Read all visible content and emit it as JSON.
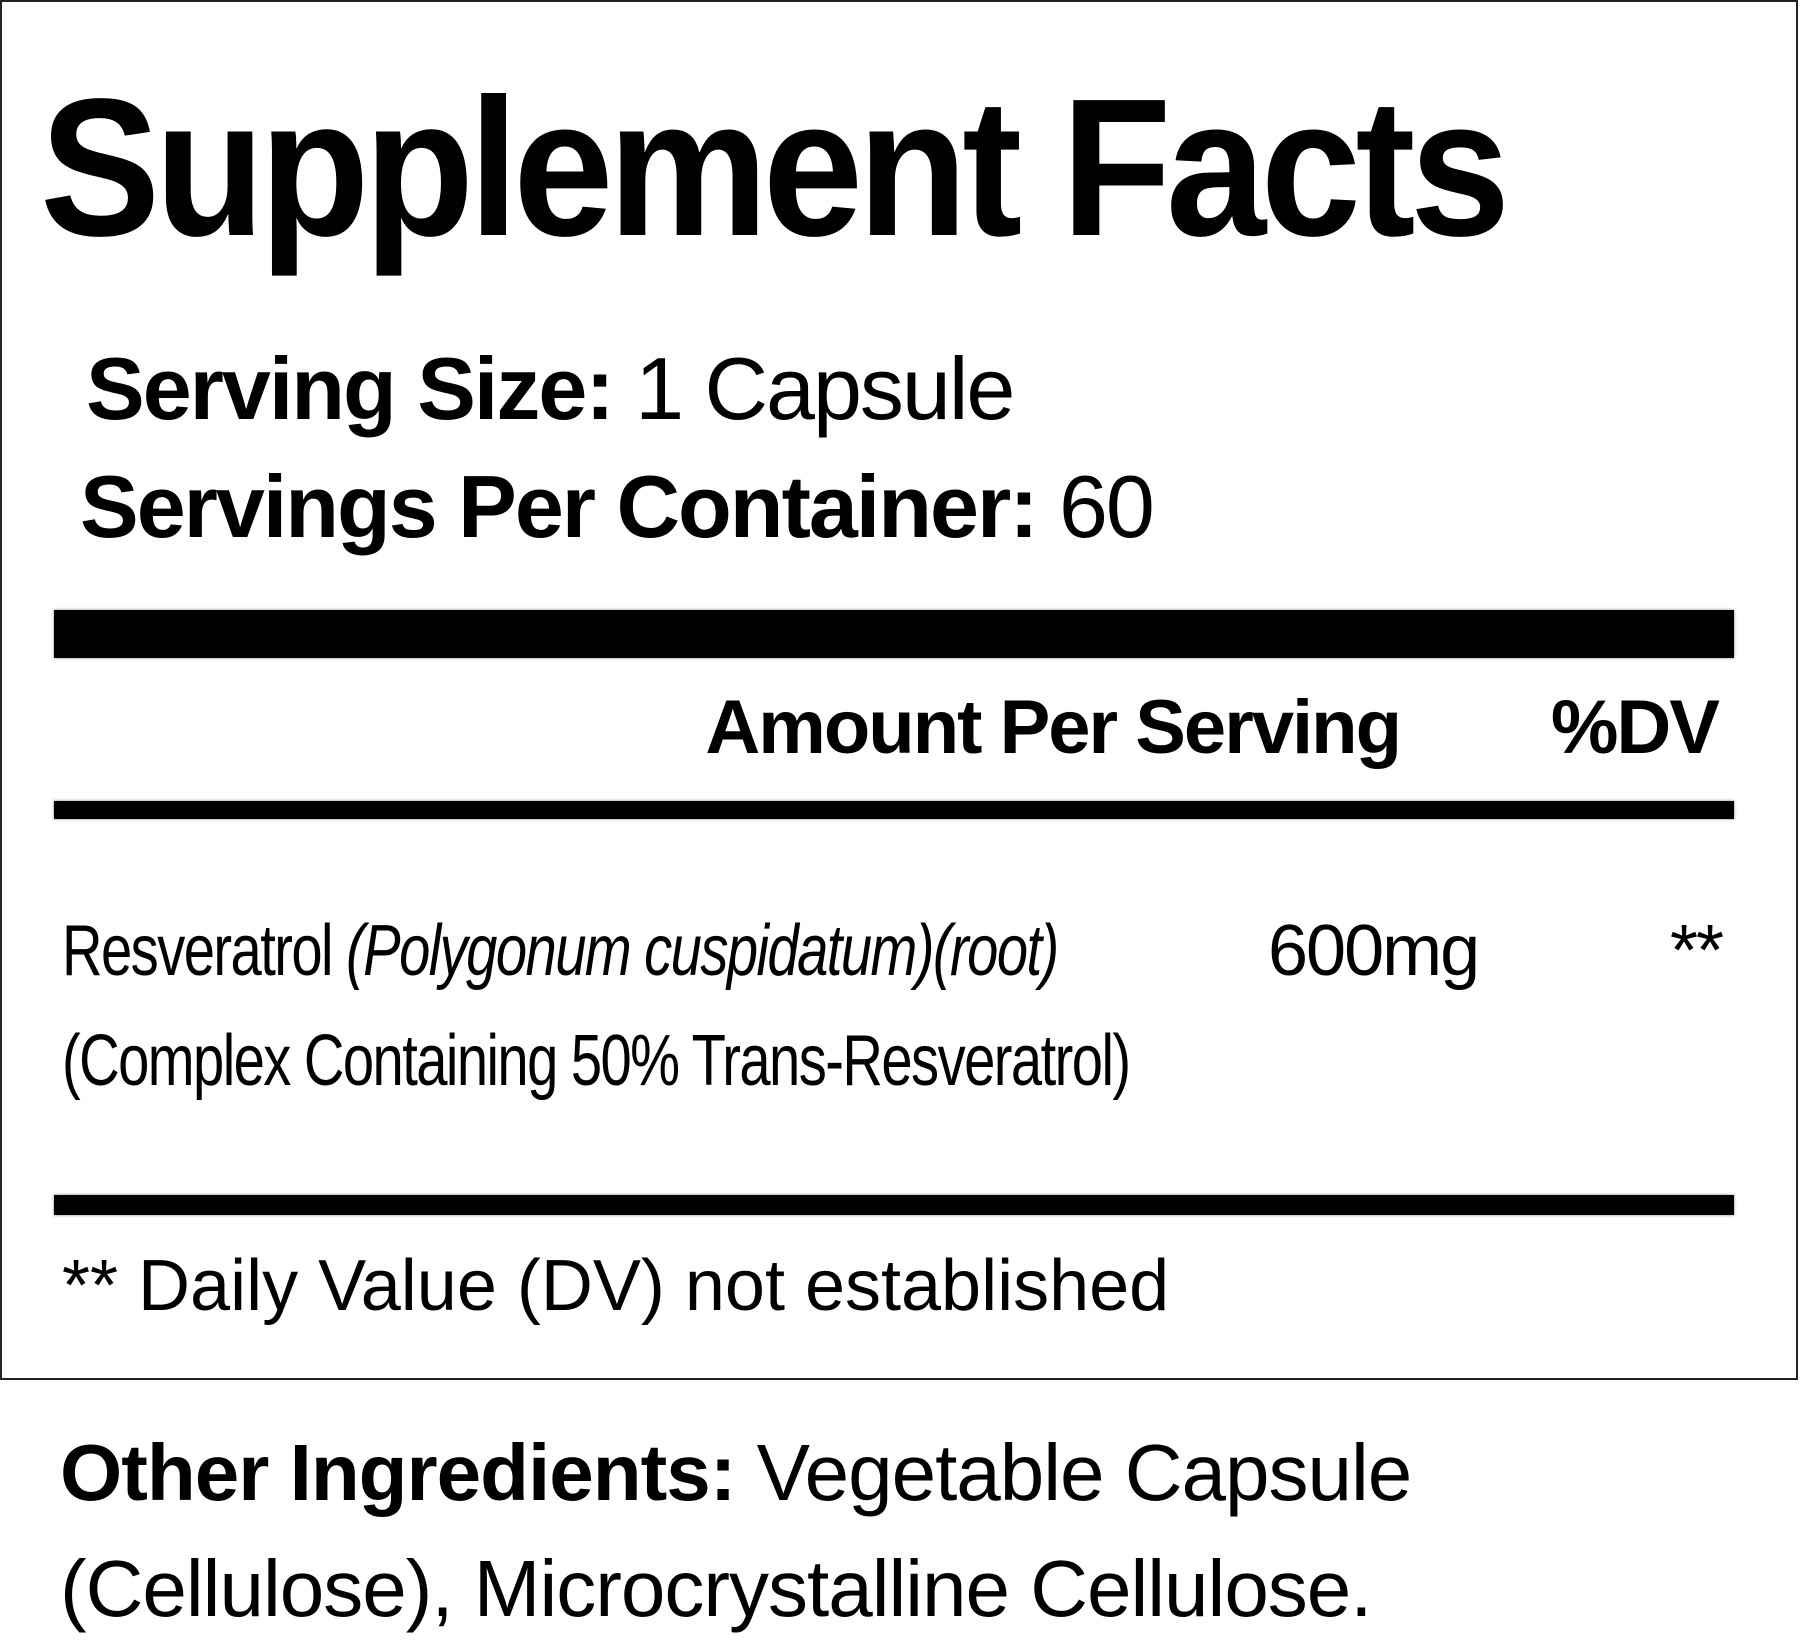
{
  "title": "Supplement Facts",
  "serving_size": {
    "label": "Serving Size:",
    "value": "1 Capsule"
  },
  "servings_per_container": {
    "label": "Servings Per Container:",
    "value": "60"
  },
  "columns": {
    "amount": "Amount Per Serving",
    "dv": "%DV"
  },
  "ingredients": [
    {
      "name": "Resveratrol",
      "source": "(Polygonum cuspidatum)(root)",
      "detail": "(Complex Containing 50% Trans-Resveratrol)",
      "amount": "600mg",
      "dv": "**"
    }
  ],
  "footnote": "** Daily Value (DV) not established",
  "other_ingredients": {
    "label": "Other Ingredients:",
    "value": "Vegetable Capsule (Cellulose), Microcrystalline Cellulose."
  }
}
